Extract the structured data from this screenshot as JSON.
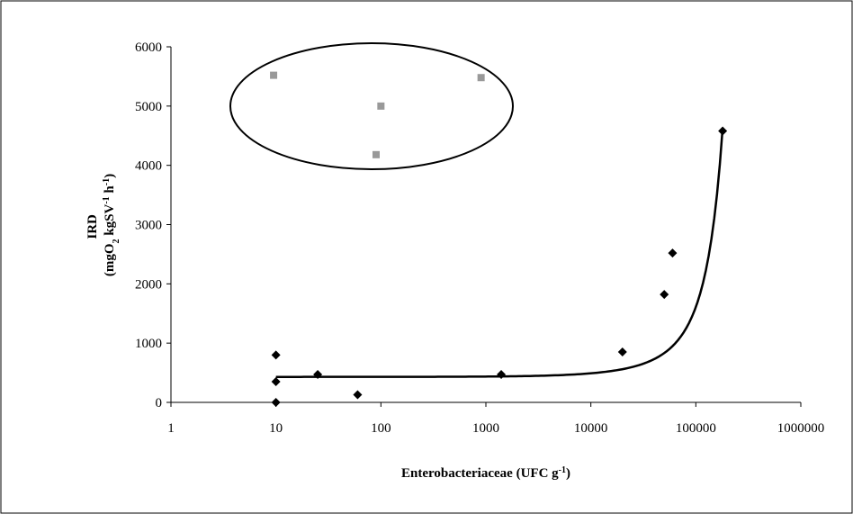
{
  "chart_data": {
    "type": "scatter",
    "xscale": "log",
    "xlim": [
      1,
      1000000
    ],
    "ylim": [
      0,
      6000
    ],
    "xticks": [
      1,
      10,
      100,
      1000,
      10000,
      100000,
      1000000
    ],
    "yticks": [
      0,
      1000,
      2000,
      3000,
      4000,
      5000,
      6000
    ],
    "xtick_labels": [
      "1",
      "10",
      "100",
      "1000",
      "10000",
      "100000",
      "1000000"
    ],
    "ytick_labels": [
      "0",
      "1000",
      "2000",
      "3000",
      "4000",
      "5000",
      "6000"
    ],
    "xlabel": {
      "main": "Enterobacteriaceae (UFC g",
      "sup": "-1",
      "close": ")"
    },
    "ylabel": {
      "line1": "IRD",
      "line2_open": "(mgO",
      "line2_sub": "2",
      "line2_mid": " kgSV",
      "line2_sup1": "-1",
      "line2_h": " h",
      "line2_sup2": "-1",
      "line2_close": ")"
    },
    "grid": false,
    "legend": "none",
    "series": [
      {
        "marker": "diamond",
        "color": "#000000",
        "x": [
          10,
          10,
          10,
          25,
          60,
          1400,
          20000,
          50000,
          60000,
          180000
        ],
        "y": [
          0,
          350,
          800,
          470,
          130,
          470,
          850,
          1820,
          2520,
          4580
        ]
      },
      {
        "marker": "square",
        "color": "#999999",
        "x": [
          9.5,
          90,
          100,
          900
        ],
        "y": [
          5520,
          4180,
          5000,
          5480
        ]
      }
    ],
    "trendline": {
      "type": "exponential",
      "color": "#000000",
      "base": 430,
      "coefficient": 1.32e-05,
      "x_from": 10,
      "x_to": 180000
    },
    "annotation": {
      "shape": "ellipse",
      "encloses_series": 1
    }
  }
}
